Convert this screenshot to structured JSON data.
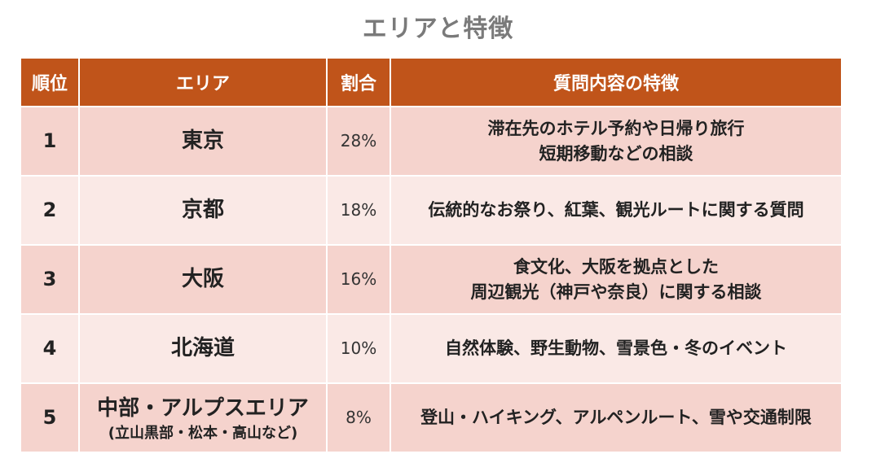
{
  "title": "エリアと特徴",
  "colors": {
    "header_bg": "#c0541a",
    "row_odd": "#f5d3cd",
    "row_even": "#fae9e6",
    "title": "#7a7a7a"
  },
  "columns": [
    "順位",
    "エリア",
    "割合",
    "質問内容の特徴"
  ],
  "rows": [
    {
      "rank": "1",
      "area": "東京",
      "area_sub": "",
      "percent": "28%",
      "features": [
        "滞在先のホテル予約や日帰り旅行",
        "短期移動などの相談"
      ]
    },
    {
      "rank": "2",
      "area": "京都",
      "area_sub": "",
      "percent": "18%",
      "features": [
        "伝統的なお祭り、紅葉、観光ルートに関する質問"
      ]
    },
    {
      "rank": "3",
      "area": "大阪",
      "area_sub": "",
      "percent": "16%",
      "features": [
        "食文化、大阪を拠点とした",
        "周辺観光（神戸や奈良）に関する相談"
      ]
    },
    {
      "rank": "4",
      "area": "北海道",
      "area_sub": "",
      "percent": "10%",
      "features": [
        "自然体験、野生動物、雪景色・冬のイベント"
      ]
    },
    {
      "rank": "5",
      "area": "中部・アルプスエリア",
      "area_sub": "(立山黒部・松本・高山など)",
      "percent": "8%",
      "features": [
        "登山・ハイキング、アルペンルート、雪や交通制限"
      ]
    }
  ]
}
